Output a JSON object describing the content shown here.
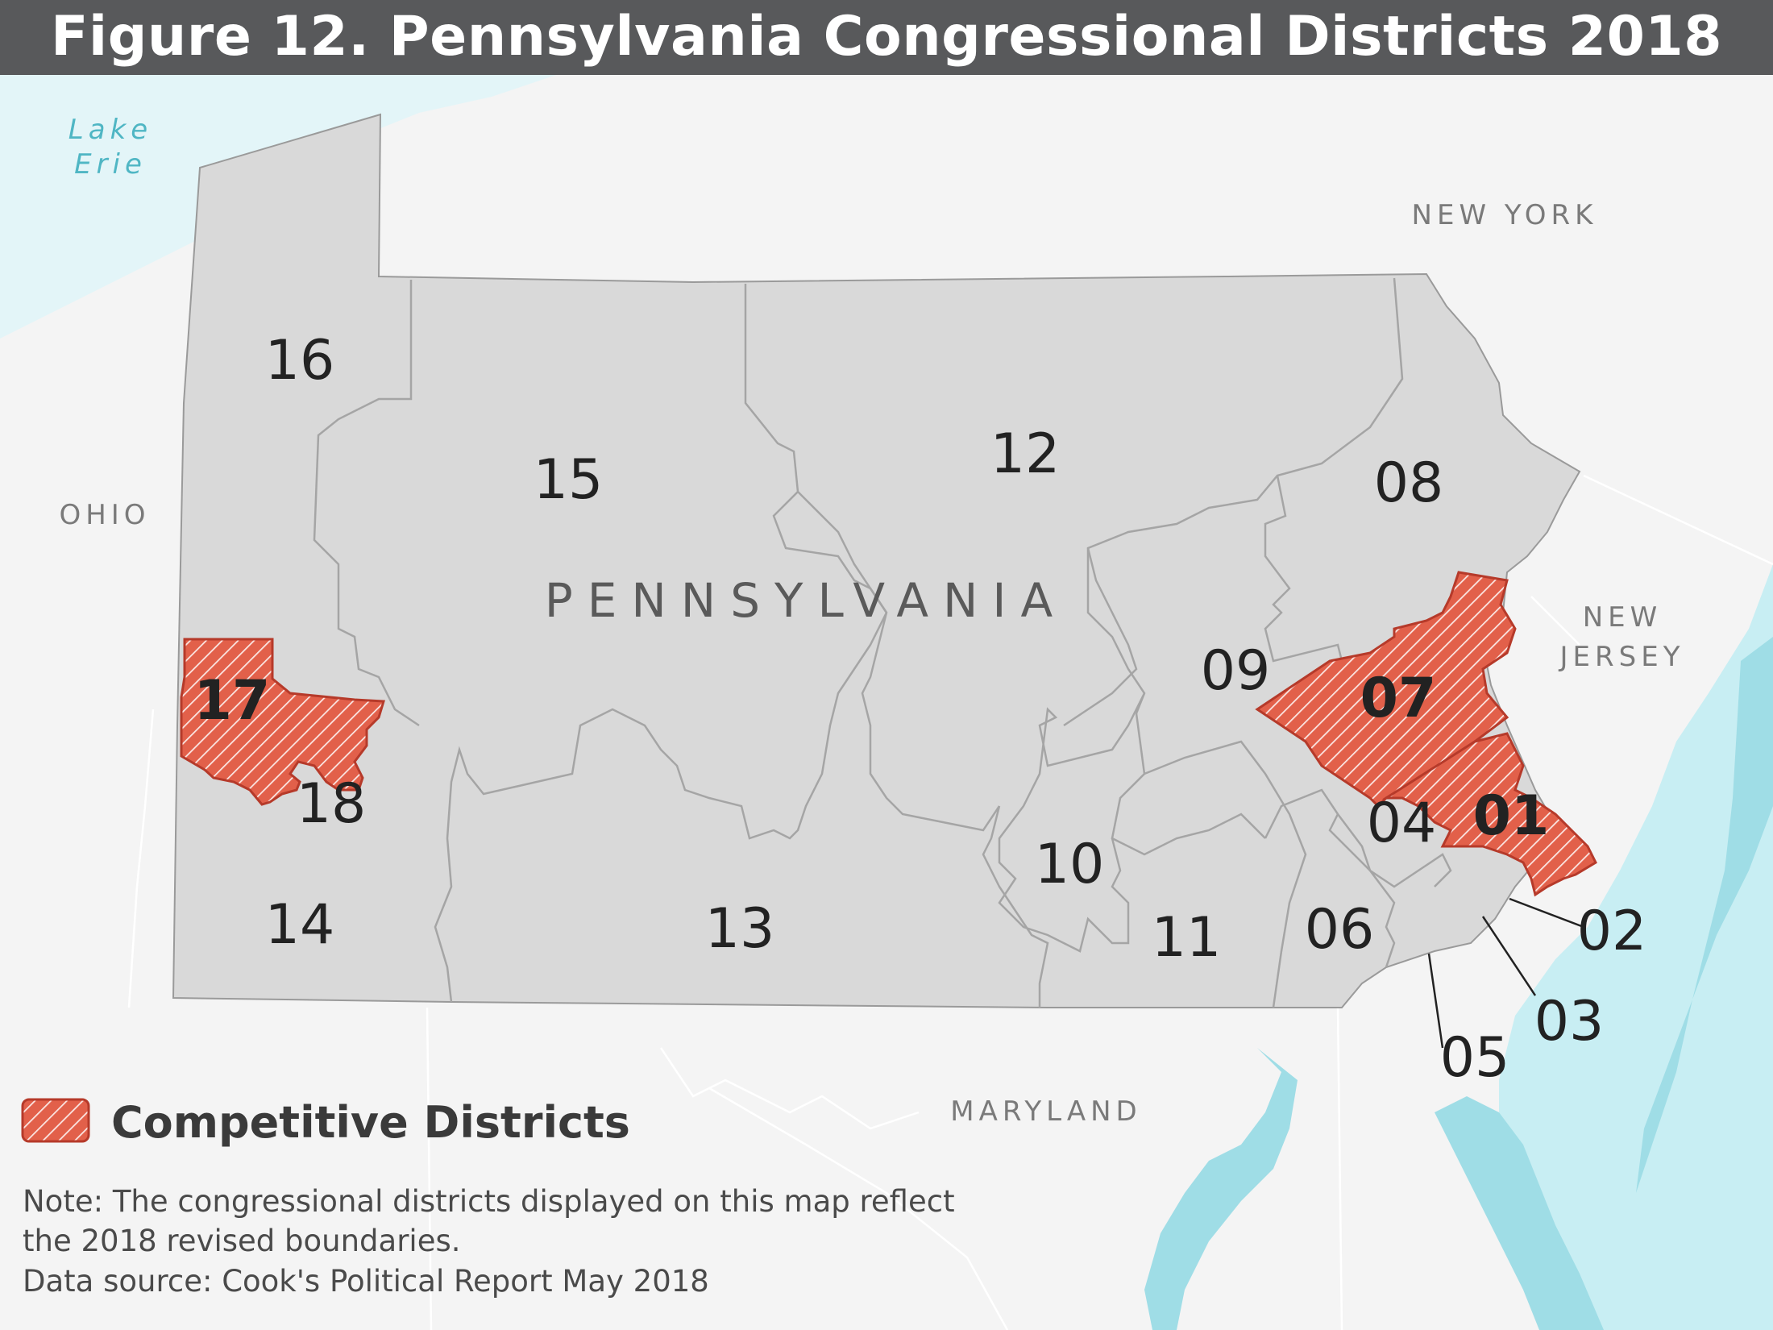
{
  "title": "Figure 12. Pennsylvania Congressional Districts 2018",
  "geography": {
    "lake": [
      "Lake",
      "Erie"
    ],
    "state": "PENNSYLVANIA",
    "new_york": "NEW YORK",
    "ohio": "OHIO",
    "new_jersey": [
      "NEW",
      "JERSEY"
    ],
    "maryland": "MARYLAND"
  },
  "districts": [
    {
      "id": "16",
      "competitive": false
    },
    {
      "id": "15",
      "competitive": false
    },
    {
      "id": "12",
      "competitive": false
    },
    {
      "id": "08",
      "competitive": false
    },
    {
      "id": "09",
      "competitive": false
    },
    {
      "id": "07",
      "competitive": true
    },
    {
      "id": "17",
      "competitive": true
    },
    {
      "id": "18",
      "competitive": false
    },
    {
      "id": "04",
      "competitive": false
    },
    {
      "id": "01",
      "competitive": true
    },
    {
      "id": "10",
      "competitive": false
    },
    {
      "id": "14",
      "competitive": false
    },
    {
      "id": "13",
      "competitive": false
    },
    {
      "id": "11",
      "competitive": false
    },
    {
      "id": "06",
      "competitive": false
    },
    {
      "id": "02",
      "competitive": false
    },
    {
      "id": "03",
      "competitive": false
    },
    {
      "id": "05",
      "competitive": false
    }
  ],
  "legend": {
    "label": "Competitive Districts"
  },
  "note": {
    "line1": "Note: The congressional districts displayed on this map reflect",
    "line2": "the 2018 revised boundaries.",
    "source": "Data source: Cook's Political Report May 2018"
  },
  "colors": {
    "title_bg": "#58595b",
    "district_fill": "#d9d9d9",
    "competitive_fill": "#e2604a",
    "water": "#9fdde6",
    "land": "#f4f4f4"
  }
}
